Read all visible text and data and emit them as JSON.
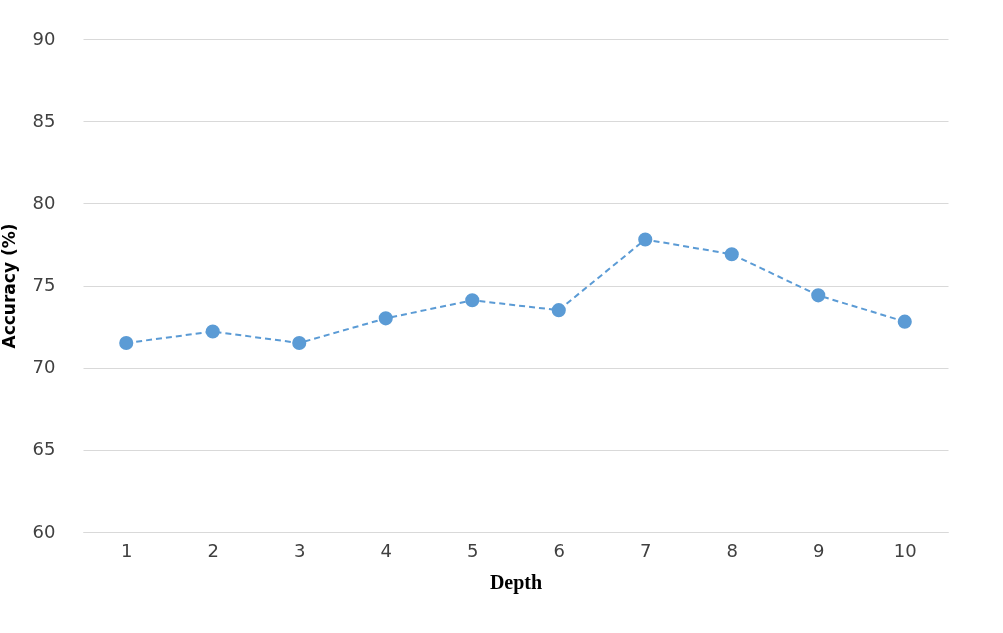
{
  "chart_data": {
    "type": "line",
    "xlabel": "Depth",
    "ylabel": "Accuracy (%)",
    "categories": [
      "1",
      "2",
      "3",
      "4",
      "5",
      "6",
      "7",
      "8",
      "9",
      "10"
    ],
    "series": [
      {
        "color": "#5b9bd5",
        "values": [
          71.5,
          72.2,
          71.5,
          73.0,
          74.1,
          73.5,
          77.8,
          76.9,
          74.4,
          72.8
        ]
      }
    ],
    "ylim": [
      60,
      90
    ],
    "yticks": [
      60,
      65,
      70,
      75,
      80,
      85,
      90
    ],
    "grid": "y",
    "marker": "circle",
    "line_style": "dashed"
  }
}
